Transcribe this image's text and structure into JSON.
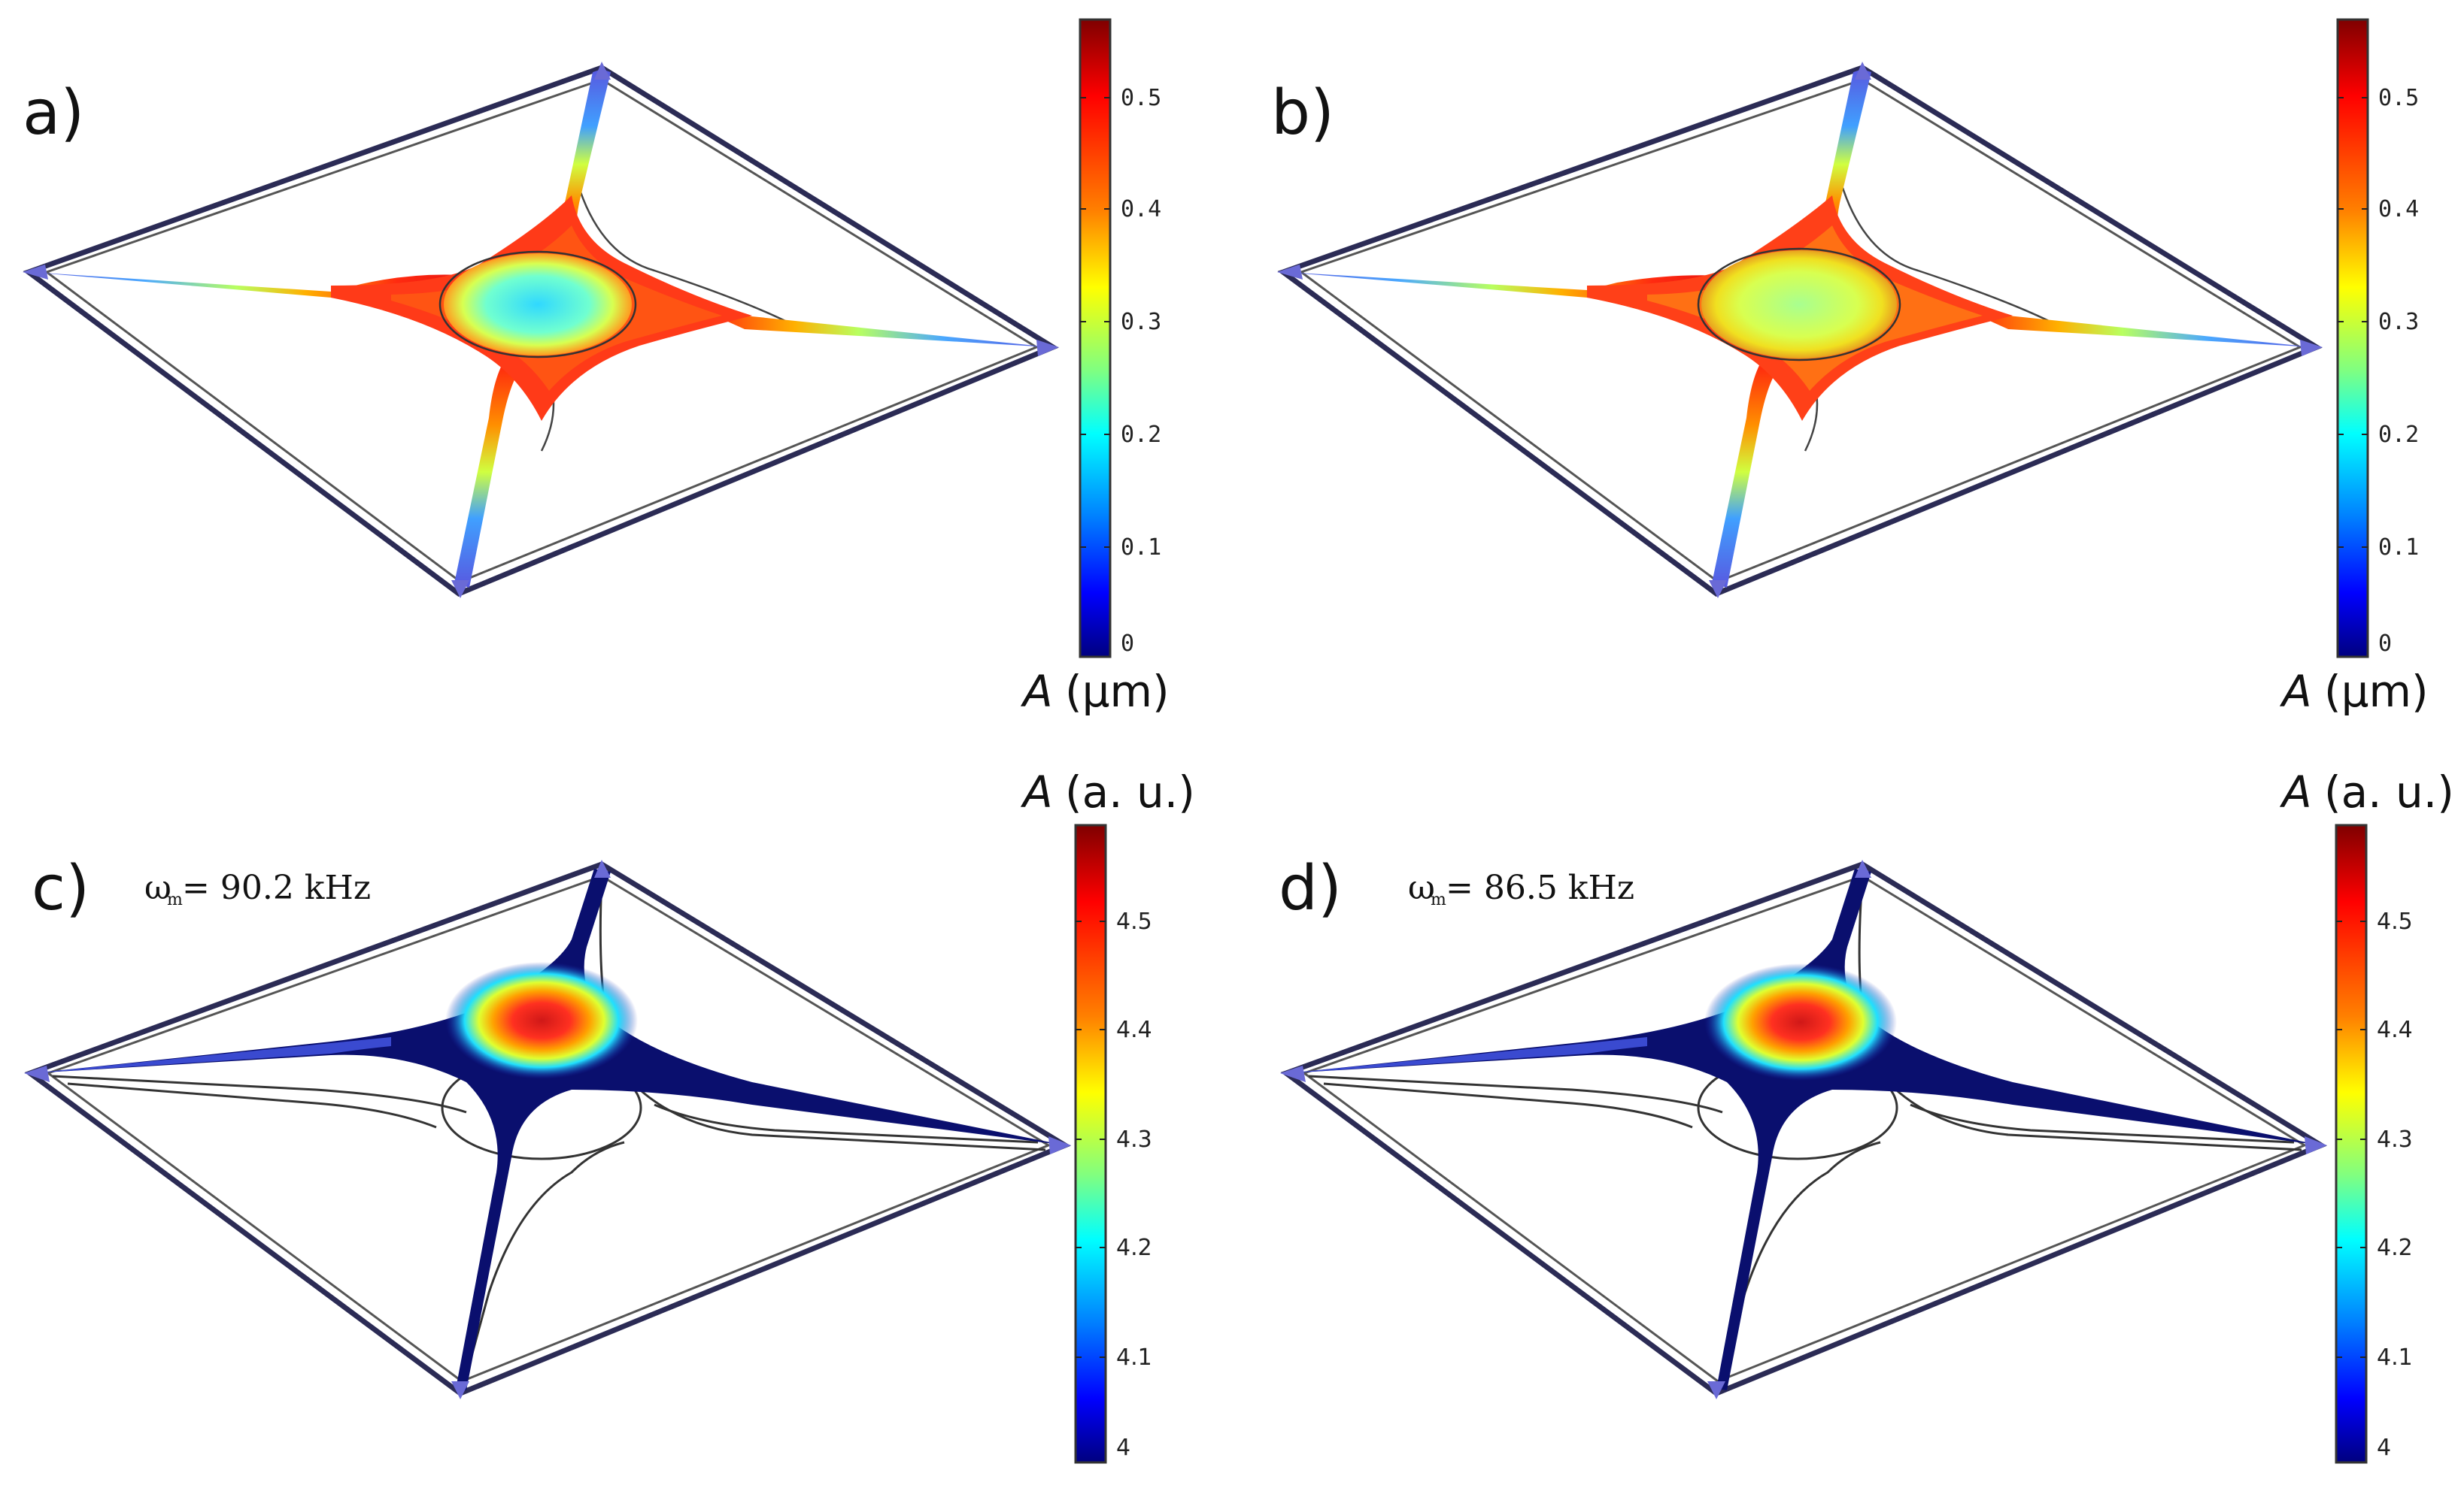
{
  "panels": [
    {
      "letter": "a)",
      "quantity": "A",
      "unit": "(μm)",
      "ticks": [
        "0.5",
        "0.4",
        "0.3",
        "0.2",
        "0.1",
        "0"
      ],
      "mode": "displacement",
      "center": "cyan"
    },
    {
      "letter": "b)",
      "quantity": "A",
      "unit": "(μm)",
      "ticks": [
        "0.5",
        "0.4",
        "0.3",
        "0.2",
        "0.1",
        "0"
      ],
      "mode": "displacement",
      "center": "yellow"
    },
    {
      "letter": "c)",
      "quantity": "A",
      "unit": "(a. u.)",
      "ticks": [
        "4.5",
        "4.4",
        "4.3",
        "4.2",
        "4.1",
        "4"
      ],
      "mode": "optical",
      "freq_symbol": "ω",
      "freq_sub": "m",
      "freq_text": "= 90.2 kHz"
    },
    {
      "letter": "d)",
      "quantity": "A",
      "unit": "(a. u.)",
      "ticks": [
        "4.5",
        "4.4",
        "4.3",
        "4.2",
        "4.1",
        "4"
      ],
      "mode": "optical",
      "freq_symbol": "ω",
      "freq_sub": "m",
      "freq_text": "= 86.5 kHz"
    }
  ],
  "colors": {
    "jet": [
      "#00007f",
      "#0000ff",
      "#007fff",
      "#00ffff",
      "#7fff7f",
      "#ffff00",
      "#ff7f00",
      "#ff0000",
      "#7f0000"
    ],
    "frame": "#2b2b55",
    "anchor": "#6a6ad6",
    "dark_beam": "#0a0f6e"
  }
}
